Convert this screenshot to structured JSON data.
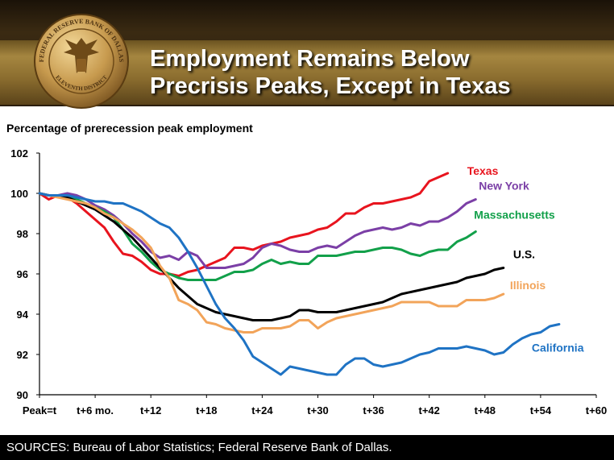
{
  "header": {
    "title_line1": "Employment Remains Below",
    "title_line2": "Precrisis Peaks, Except in Texas",
    "seal_text_top": "FEDERAL RESERVE BANK OF DALLAS",
    "seal_text_bottom": "ELEVENTH DISTRICT",
    "seal_icon": "eagle-seal-icon"
  },
  "footer": {
    "sources": "SOURCES: Bureau of Labor Statistics; Federal Reserve Bank of Dallas."
  },
  "colors": {
    "texas": "#e8141e",
    "new_york": "#7b3fa6",
    "massachusetts": "#12a04a",
    "us": "#000000",
    "illinois": "#f2a45a",
    "california": "#1f73c4",
    "header_gold": "#a58640"
  },
  "chart_data": {
    "type": "line",
    "ylabel": "Percentage of prerecession peak employment",
    "xlabel": "",
    "ylim": [
      90,
      102
    ],
    "xlim": [
      0,
      60
    ],
    "yticks": [
      "90",
      "92",
      "94",
      "96",
      "98",
      "100",
      "102"
    ],
    "xtick_labels": [
      {
        "x": 0,
        "label": "Peak=t"
      },
      {
        "x": 6,
        "label": "t+6 mo."
      },
      {
        "x": 12,
        "label": "t+12"
      },
      {
        "x": 18,
        "label": "t+18"
      },
      {
        "x": 24,
        "label": "t+24"
      },
      {
        "x": 30,
        "label": "t+30"
      },
      {
        "x": 36,
        "label": "t+36"
      },
      {
        "x": 42,
        "label": "t+42"
      },
      {
        "x": 48,
        "label": "t+48"
      },
      {
        "x": 54,
        "label": "t+54"
      },
      {
        "x": 60,
        "label": "t+60"
      }
    ],
    "grid": false,
    "legend": "direct labels at line ends",
    "series": [
      {
        "name": "Texas",
        "key": "texas",
        "x": [
          0,
          1,
          2,
          3,
          4,
          5,
          6,
          7,
          8,
          9,
          10,
          11,
          12,
          13,
          14,
          15,
          16,
          17,
          18,
          19,
          20,
          21,
          22,
          23,
          24,
          25,
          26,
          27,
          28,
          29,
          30,
          31,
          32,
          33,
          34,
          35,
          36,
          37,
          38,
          39,
          40,
          41,
          42,
          43,
          44
        ],
        "values": [
          100,
          99.7,
          99.9,
          99.8,
          99.5,
          99.1,
          98.7,
          98.3,
          97.6,
          97.0,
          96.9,
          96.6,
          96.2,
          96.0,
          96.0,
          95.9,
          96.1,
          96.2,
          96.4,
          96.6,
          96.8,
          97.3,
          97.3,
          97.2,
          97.4,
          97.5,
          97.6,
          97.8,
          97.9,
          98.0,
          98.2,
          98.3,
          98.6,
          99.0,
          99.0,
          99.3,
          99.5,
          99.5,
          99.6,
          99.7,
          99.8,
          100.0,
          100.6,
          100.8,
          101.0
        ]
      },
      {
        "name": "New York",
        "key": "new_york",
        "x": [
          0,
          1,
          2,
          3,
          4,
          5,
          6,
          7,
          8,
          9,
          10,
          11,
          12,
          13,
          14,
          15,
          16,
          17,
          18,
          19,
          20,
          21,
          22,
          23,
          24,
          25,
          26,
          27,
          28,
          29,
          30,
          31,
          32,
          33,
          34,
          35,
          36,
          37,
          38,
          39,
          40,
          41,
          42,
          43,
          44,
          45,
          46,
          47
        ],
        "values": [
          100,
          99.9,
          99.9,
          100.0,
          99.9,
          99.7,
          99.4,
          99.2,
          98.9,
          98.5,
          98.0,
          97.6,
          97.1,
          96.8,
          96.9,
          96.7,
          97.1,
          96.9,
          96.3,
          96.3,
          96.3,
          96.4,
          96.5,
          96.8,
          97.3,
          97.5,
          97.4,
          97.2,
          97.1,
          97.1,
          97.3,
          97.4,
          97.3,
          97.6,
          97.9,
          98.1,
          98.2,
          98.3,
          98.2,
          98.3,
          98.5,
          98.4,
          98.6,
          98.6,
          98.8,
          99.1,
          99.5,
          99.7
        ]
      },
      {
        "name": "Massachusetts",
        "key": "massachusetts",
        "x": [
          0,
          1,
          2,
          3,
          4,
          5,
          6,
          7,
          8,
          9,
          10,
          11,
          12,
          13,
          14,
          15,
          16,
          17,
          18,
          19,
          20,
          21,
          22,
          23,
          24,
          25,
          26,
          27,
          28,
          29,
          30,
          31,
          32,
          33,
          34,
          35,
          36,
          37,
          38,
          39,
          40,
          41,
          42,
          43,
          44,
          45,
          46,
          47
        ],
        "values": [
          100,
          99.9,
          99.9,
          99.8,
          99.7,
          99.5,
          99.3,
          99.1,
          98.8,
          98.2,
          97.5,
          97.1,
          96.6,
          96.2,
          96.0,
          95.8,
          95.7,
          95.7,
          95.7,
          95.7,
          95.9,
          96.1,
          96.1,
          96.2,
          96.5,
          96.7,
          96.5,
          96.6,
          96.5,
          96.5,
          96.9,
          96.9,
          96.9,
          97.0,
          97.1,
          97.1,
          97.2,
          97.3,
          97.3,
          97.2,
          97.0,
          96.9,
          97.1,
          97.2,
          97.2,
          97.6,
          97.8,
          98.1
        ]
      },
      {
        "name": "U.S.",
        "key": "us",
        "x": [
          0,
          1,
          2,
          3,
          4,
          5,
          6,
          7,
          8,
          9,
          10,
          11,
          12,
          13,
          14,
          15,
          16,
          17,
          18,
          19,
          20,
          21,
          22,
          23,
          24,
          25,
          26,
          27,
          28,
          29,
          30,
          31,
          32,
          33,
          34,
          35,
          36,
          37,
          38,
          39,
          40,
          41,
          42,
          43,
          44,
          45,
          46,
          47,
          48,
          49,
          50
        ],
        "values": [
          100,
          99.9,
          99.9,
          99.8,
          99.6,
          99.4,
          99.2,
          98.9,
          98.6,
          98.2,
          97.8,
          97.3,
          96.8,
          96.3,
          95.8,
          95.3,
          94.9,
          94.5,
          94.3,
          94.1,
          94.0,
          93.9,
          93.8,
          93.7,
          93.7,
          93.7,
          93.8,
          93.9,
          94.2,
          94.2,
          94.1,
          94.1,
          94.1,
          94.2,
          94.3,
          94.4,
          94.5,
          94.6,
          94.8,
          95.0,
          95.1,
          95.2,
          95.3,
          95.4,
          95.5,
          95.6,
          95.8,
          95.9,
          96.0,
          96.2,
          96.3
        ]
      },
      {
        "name": "Illinois",
        "key": "illinois",
        "x": [
          0,
          1,
          2,
          3,
          4,
          5,
          6,
          7,
          8,
          9,
          10,
          11,
          12,
          13,
          14,
          15,
          16,
          17,
          18,
          19,
          20,
          21,
          22,
          23,
          24,
          25,
          26,
          27,
          28,
          29,
          30,
          31,
          32,
          33,
          34,
          35,
          36,
          37,
          38,
          39,
          40,
          41,
          42,
          43,
          44,
          45,
          46,
          47,
          48,
          49,
          50
        ],
        "values": [
          100,
          99.9,
          99.8,
          99.7,
          99.6,
          99.5,
          99.3,
          99.0,
          98.8,
          98.5,
          98.2,
          97.8,
          97.3,
          96.4,
          95.8,
          94.7,
          94.5,
          94.2,
          93.6,
          93.5,
          93.3,
          93.2,
          93.1,
          93.1,
          93.3,
          93.3,
          93.3,
          93.4,
          93.7,
          93.7,
          93.3,
          93.6,
          93.8,
          93.9,
          94.0,
          94.1,
          94.2,
          94.3,
          94.4,
          94.6,
          94.6,
          94.6,
          94.6,
          94.4,
          94.4,
          94.4,
          94.7,
          94.7,
          94.7,
          94.8,
          95.0
        ]
      },
      {
        "name": "California",
        "key": "california",
        "x": [
          0,
          1,
          2,
          3,
          4,
          5,
          6,
          7,
          8,
          9,
          10,
          11,
          12,
          13,
          14,
          15,
          16,
          17,
          18,
          19,
          20,
          21,
          22,
          23,
          24,
          25,
          26,
          27,
          28,
          29,
          30,
          31,
          32,
          33,
          34,
          35,
          36,
          37,
          38,
          39,
          40,
          41,
          42,
          43,
          44,
          45,
          46,
          47,
          48,
          49,
          50,
          51,
          52,
          53,
          54,
          55,
          56
        ],
        "values": [
          100,
          99.9,
          99.9,
          99.9,
          99.8,
          99.7,
          99.6,
          99.6,
          99.5,
          99.5,
          99.3,
          99.1,
          98.8,
          98.5,
          98.3,
          97.8,
          97.1,
          96.3,
          95.4,
          94.5,
          93.8,
          93.3,
          92.7,
          91.9,
          91.6,
          91.3,
          91.0,
          91.4,
          91.3,
          91.2,
          91.1,
          91.0,
          91.0,
          91.5,
          91.8,
          91.8,
          91.5,
          91.4,
          91.5,
          91.6,
          91.8,
          92.0,
          92.1,
          92.3,
          92.3,
          92.3,
          92.4,
          92.3,
          92.2,
          92.0,
          92.1,
          92.5,
          92.8,
          93.0,
          93.1,
          93.4,
          93.5
        ]
      }
    ]
  }
}
